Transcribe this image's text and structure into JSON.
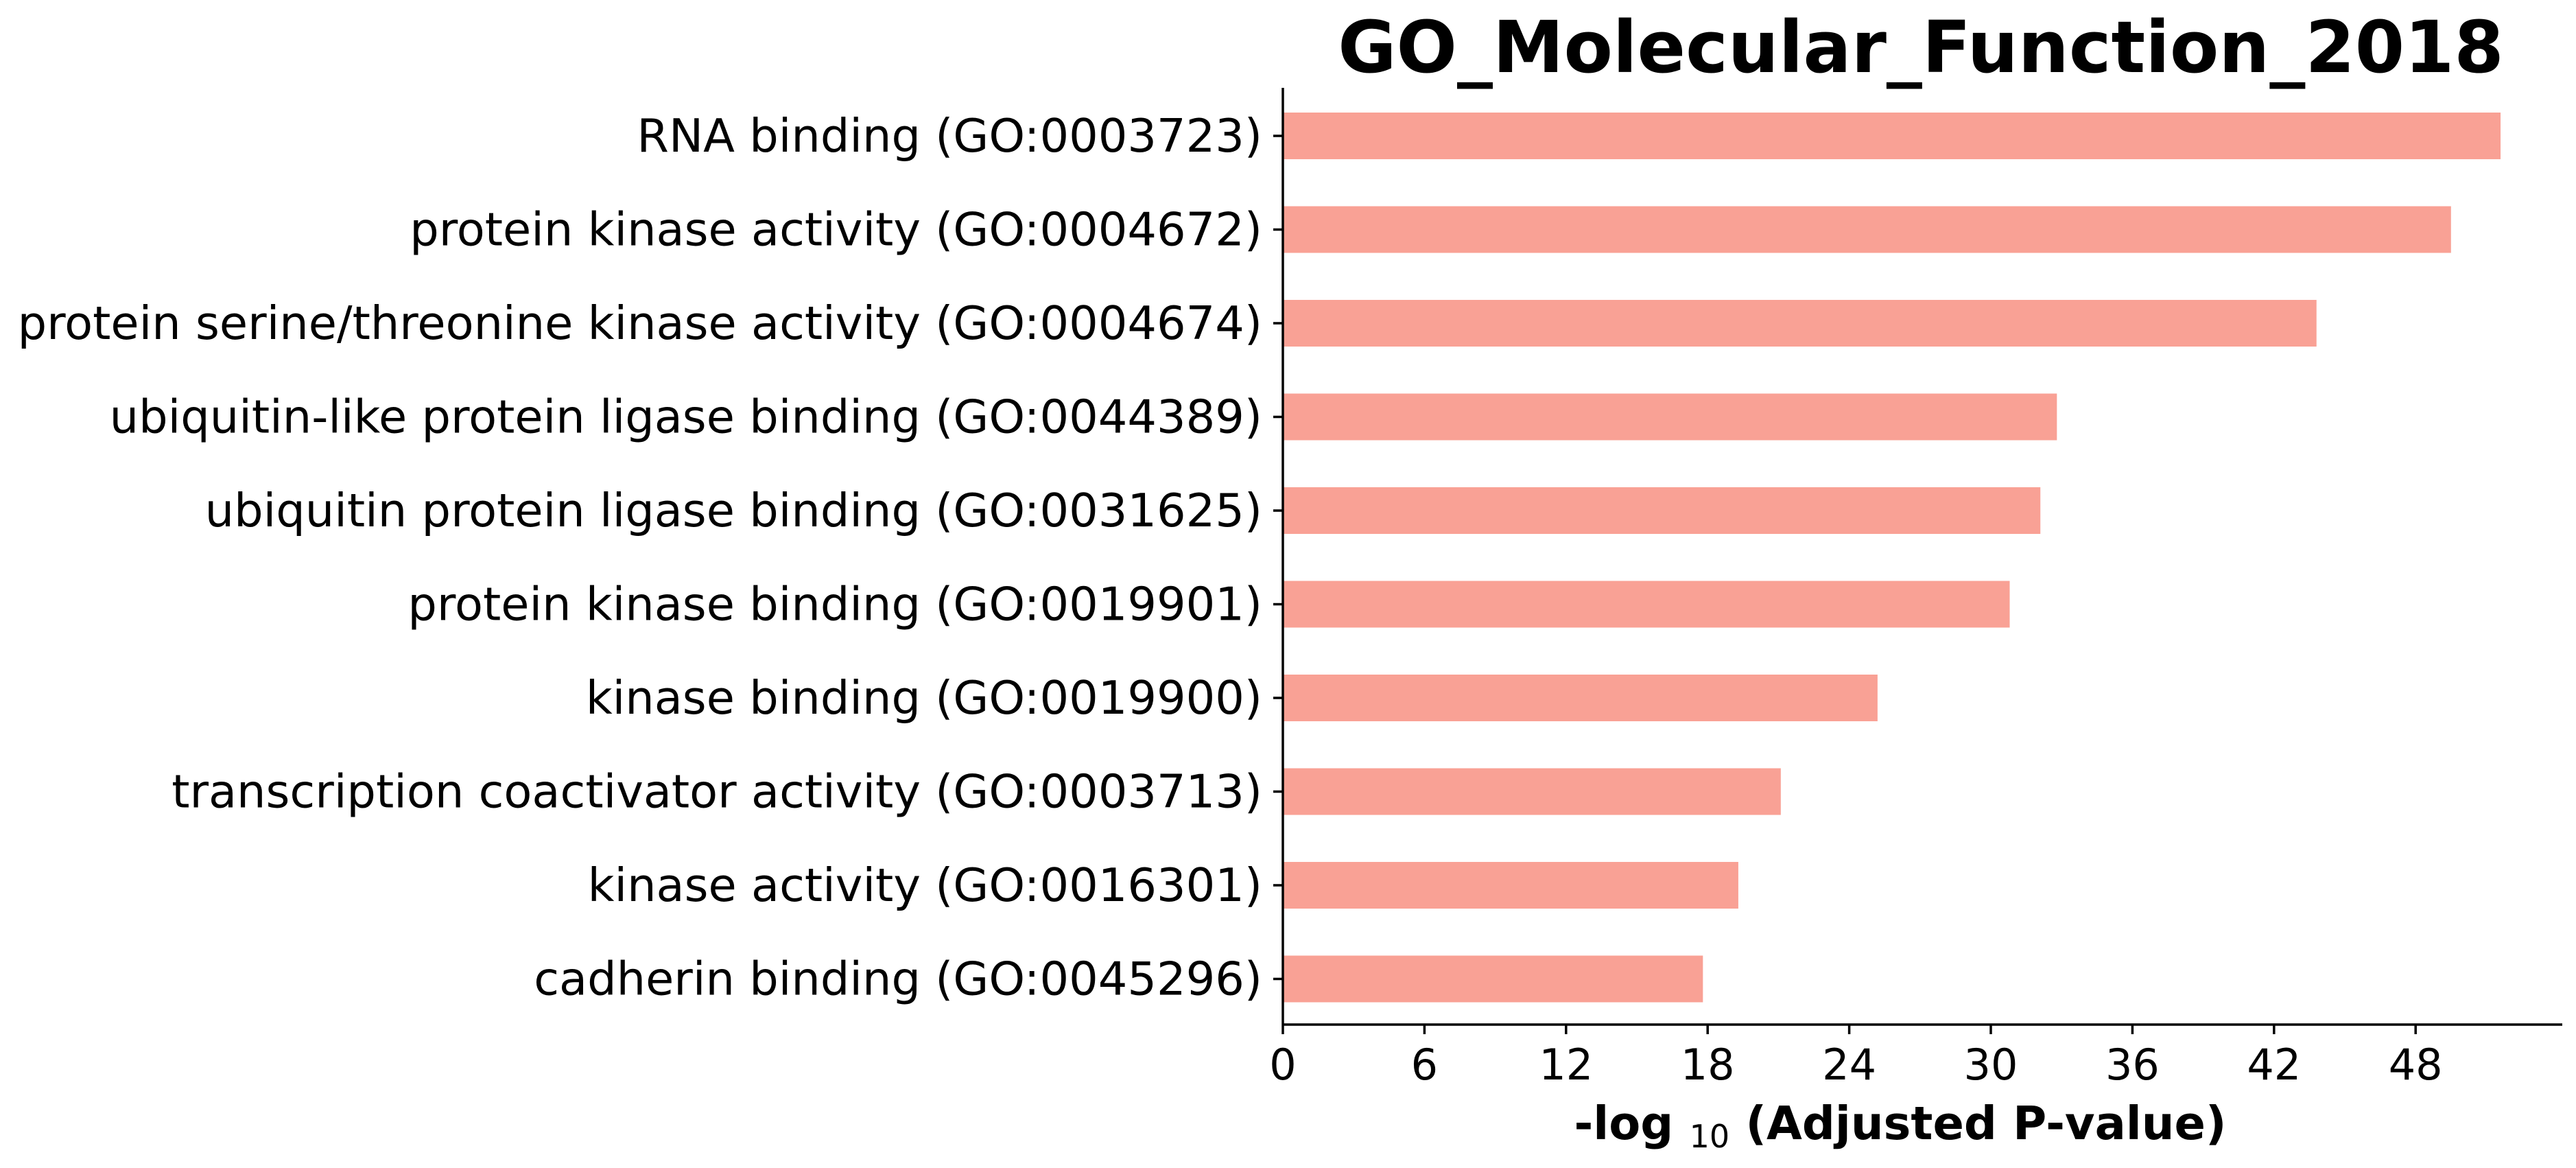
{
  "chart_data": {
    "type": "bar",
    "orientation": "horizontal",
    "title": "GO_Molecular_Function_2018",
    "xlabel": {
      "prefix": "-log",
      "subscript": "10",
      "suffix": "(Adjusted P-value)"
    },
    "ylabel": "",
    "categories": [
      "RNA binding (GO:0003723)",
      "protein kinase activity (GO:0004672)",
      "protein serine/threonine kinase activity (GO:0004674)",
      "ubiquitin-like protein ligase binding (GO:0044389)",
      "ubiquitin protein ligase binding (GO:0031625)",
      "protein kinase binding (GO:0019901)",
      "kinase binding (GO:0019900)",
      "transcription coactivator activity (GO:0003713)",
      "kinase activity (GO:0016301)",
      "cadherin binding (GO:0045296)"
    ],
    "values": [
      51.6,
      49.5,
      43.8,
      32.8,
      32.1,
      30.8,
      25.2,
      21.1,
      19.3,
      17.8
    ],
    "xlim": [
      0,
      54
    ],
    "xticks": [
      0,
      6,
      12,
      18,
      24,
      30,
      36,
      42,
      48
    ],
    "bar_color": "#f9a195",
    "grid": false,
    "legend": "none"
  }
}
